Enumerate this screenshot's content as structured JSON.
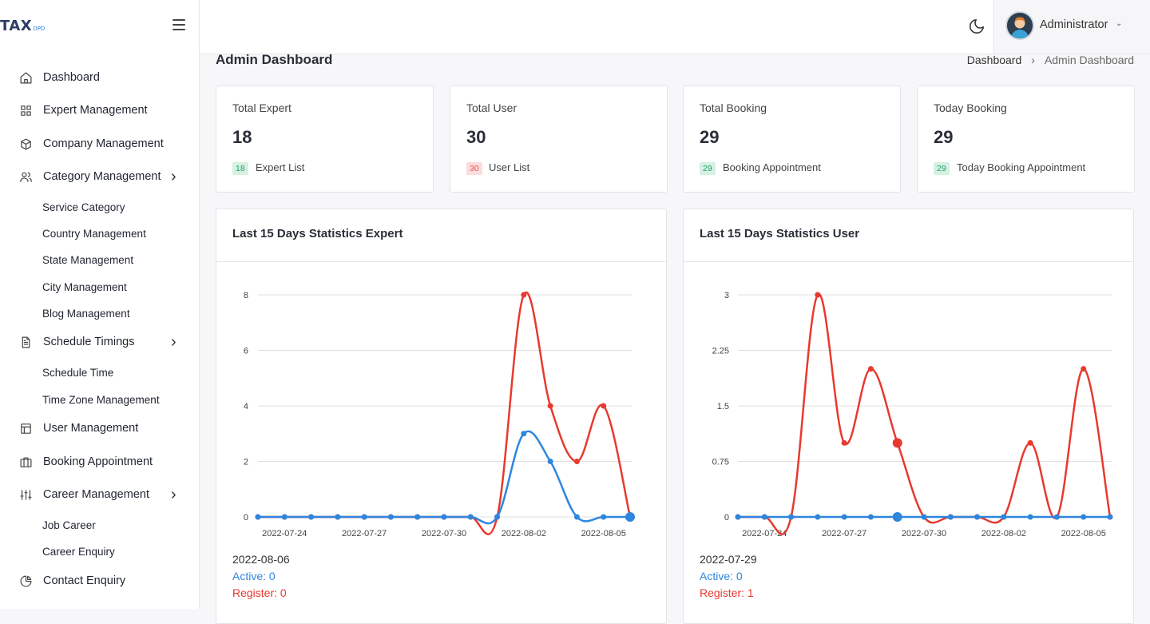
{
  "logo": {
    "main": "TAX",
    "sub": "OPD"
  },
  "sidebar": {
    "items": [
      {
        "label": "Dashboard",
        "icon": "home-icon",
        "type": "main",
        "arrow": false
      },
      {
        "label": "Expert Management",
        "icon": "grid-icon",
        "type": "main",
        "arrow": false
      },
      {
        "label": "Company Management",
        "icon": "box-icon",
        "type": "main",
        "arrow": false
      },
      {
        "label": "Category Management",
        "icon": "users-icon",
        "type": "main",
        "arrow": true
      },
      {
        "label": "Service Category",
        "type": "sub"
      },
      {
        "label": "Country Management",
        "type": "sub"
      },
      {
        "label": "State Management",
        "type": "sub"
      },
      {
        "label": "City Management",
        "type": "sub"
      },
      {
        "label": "Blog Management",
        "type": "sub"
      },
      {
        "label": "Schedule Timings",
        "icon": "file-icon",
        "type": "main",
        "arrow": true
      },
      {
        "label": "Schedule Time",
        "type": "sub"
      },
      {
        "label": "Time Zone Management",
        "type": "sub"
      },
      {
        "label": "User Management",
        "icon": "layout-icon",
        "type": "main",
        "arrow": false
      },
      {
        "label": "Booking Appointment",
        "icon": "briefcase-icon",
        "type": "main",
        "arrow": false
      },
      {
        "label": "Career Management",
        "icon": "sliders-icon",
        "type": "main",
        "arrow": true
      },
      {
        "label": "Job Career",
        "type": "sub"
      },
      {
        "label": "Career Enquiry",
        "type": "sub"
      },
      {
        "label": "Contact Enquiry",
        "icon": "pie-chart-icon",
        "type": "main",
        "arrow": false
      }
    ]
  },
  "header": {
    "user_name": "Administrator"
  },
  "page": {
    "title": "Admin Dashboard",
    "breadcrumb": [
      "Dashboard",
      "Admin Dashboard"
    ]
  },
  "stats": [
    {
      "title": "Total Expert",
      "value": "18",
      "badge": "18",
      "badge_color": "green",
      "link": "Expert List"
    },
    {
      "title": "Total User",
      "value": "30",
      "badge": "30",
      "badge_color": "red",
      "link": "User List"
    },
    {
      "title": "Total Booking",
      "value": "29",
      "badge": "29",
      "badge_color": "green",
      "link": "Booking Appointment"
    },
    {
      "title": "Today Booking",
      "value": "29",
      "badge": "29",
      "badge_color": "green",
      "link": "Today Booking Appointment"
    }
  ],
  "colors": {
    "active": "#2e86de",
    "register": "#e8392e"
  },
  "chart_data": [
    {
      "type": "line",
      "title": "Last 15 Days Statistics Expert",
      "x": [
        "2022-07-23",
        "2022-07-24",
        "2022-07-25",
        "2022-07-26",
        "2022-07-27",
        "2022-07-28",
        "2022-07-29",
        "2022-07-30",
        "2022-07-31",
        "2022-08-01",
        "2022-08-02",
        "2022-08-03",
        "2022-08-04",
        "2022-08-05",
        "2022-08-06"
      ],
      "x_tick_labels": [
        "2022-07-24",
        "2022-07-27",
        "2022-07-30",
        "2022-08-02",
        "2022-08-05"
      ],
      "y_ticks": [
        "0",
        "2",
        "4",
        "6",
        "8"
      ],
      "ylim": [
        0,
        8
      ],
      "series": [
        {
          "name": "Register",
          "color": "#e8392e",
          "values": [
            0,
            0,
            0,
            0,
            0,
            0,
            0,
            0,
            0,
            0,
            8,
            4,
            2,
            4,
            0
          ]
        },
        {
          "name": "Active",
          "color": "#2e86de",
          "values": [
            0,
            0,
            0,
            0,
            0,
            0,
            0,
            0,
            0,
            0,
            3,
            2,
            0,
            0,
            0
          ]
        }
      ],
      "highlight_index": 14,
      "tooltip": {
        "date": "2022-08-06",
        "active": "Active: 0",
        "register": "Register: 0"
      }
    },
    {
      "type": "line",
      "title": "Last 15 Days Statistics User",
      "x": [
        "2022-07-23",
        "2022-07-24",
        "2022-07-25",
        "2022-07-26",
        "2022-07-27",
        "2022-07-28",
        "2022-07-29",
        "2022-07-30",
        "2022-07-31",
        "2022-08-01",
        "2022-08-02",
        "2022-08-03",
        "2022-08-04",
        "2022-08-05",
        "2022-08-06"
      ],
      "x_tick_labels": [
        "2022-07-24",
        "2022-07-27",
        "2022-07-30",
        "2022-08-02",
        "2022-08-05"
      ],
      "y_ticks": [
        "0",
        "0.75",
        "1.5",
        "2.25",
        "3"
      ],
      "ylim": [
        0,
        3
      ],
      "series": [
        {
          "name": "Register",
          "color": "#e8392e",
          "values": [
            0,
            0,
            0,
            3,
            1,
            2,
            1,
            0,
            0,
            0,
            0,
            1,
            0,
            2,
            0
          ]
        },
        {
          "name": "Active",
          "color": "#2e86de",
          "values": [
            0,
            0,
            0,
            0,
            0,
            0,
            0,
            0,
            0,
            0,
            0,
            0,
            0,
            0,
            0
          ]
        }
      ],
      "highlight_index": 6,
      "tooltip": {
        "date": "2022-07-29",
        "active": "Active: 0",
        "register": "Register: 1"
      }
    }
  ]
}
